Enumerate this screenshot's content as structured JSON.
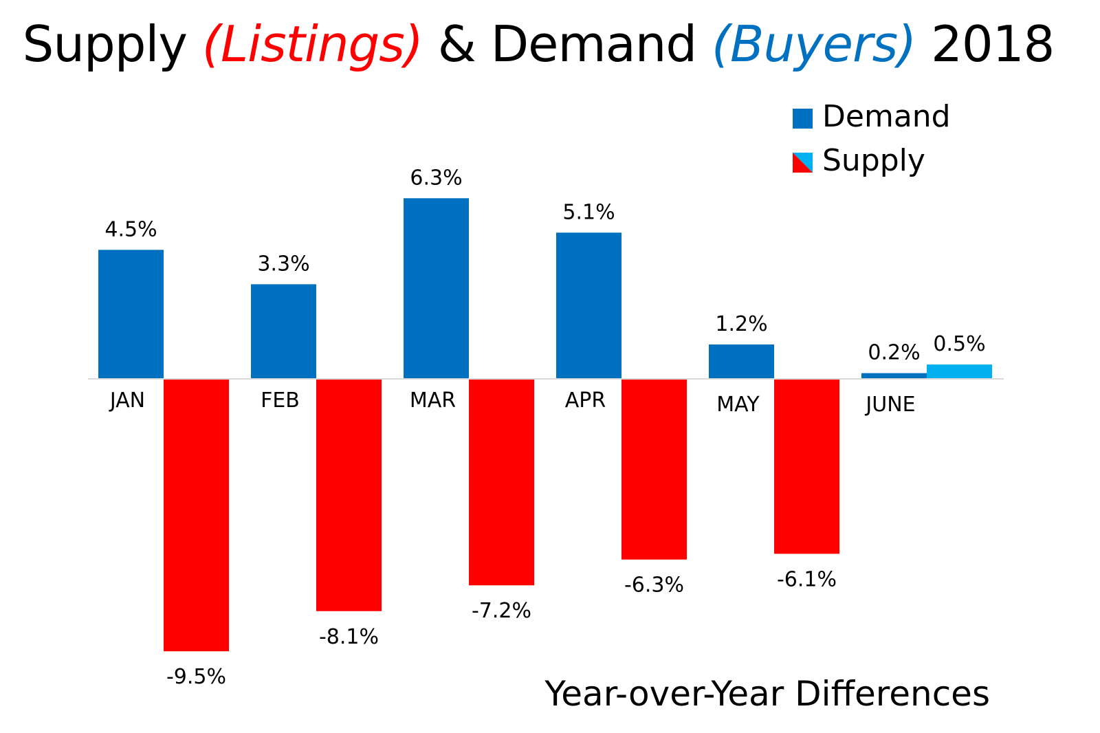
{
  "chart_data": {
    "type": "bar",
    "title_parts": {
      "p1": "Supply ",
      "p2": "(Listings)",
      "p3": " & Demand ",
      "p4": "(Buyers)",
      "p5": " 2018"
    },
    "subtitle": "Year-over-Year Differences",
    "categories": [
      "JAN",
      "FEB",
      "MAR",
      "APR",
      "MAY",
      "JUNE"
    ],
    "series": [
      {
        "name": "Demand",
        "values": [
          4.5,
          3.3,
          6.3,
          5.1,
          1.2,
          0.2
        ],
        "labels": [
          "4.5%",
          "3.3%",
          "6.3%",
          "5.1%",
          "1.2%",
          "0.2%"
        ],
        "color": "#0070C0"
      },
      {
        "name": "Supply",
        "values": [
          -9.5,
          -8.1,
          -7.2,
          -6.3,
          -6.1,
          0.5
        ],
        "labels": [
          "-9.5%",
          "-8.1%",
          "-7.2%",
          "-6.3%",
          "-6.1%",
          "0.5%"
        ],
        "color": "#FF0000",
        "positive_color": "#00B0F0"
      }
    ],
    "ylim": [
      -10,
      7
    ],
    "grid": false,
    "legend_placement": "top-right",
    "colors": {
      "title_listings": "#FF0000",
      "title_buyers": "#0070C0"
    }
  }
}
